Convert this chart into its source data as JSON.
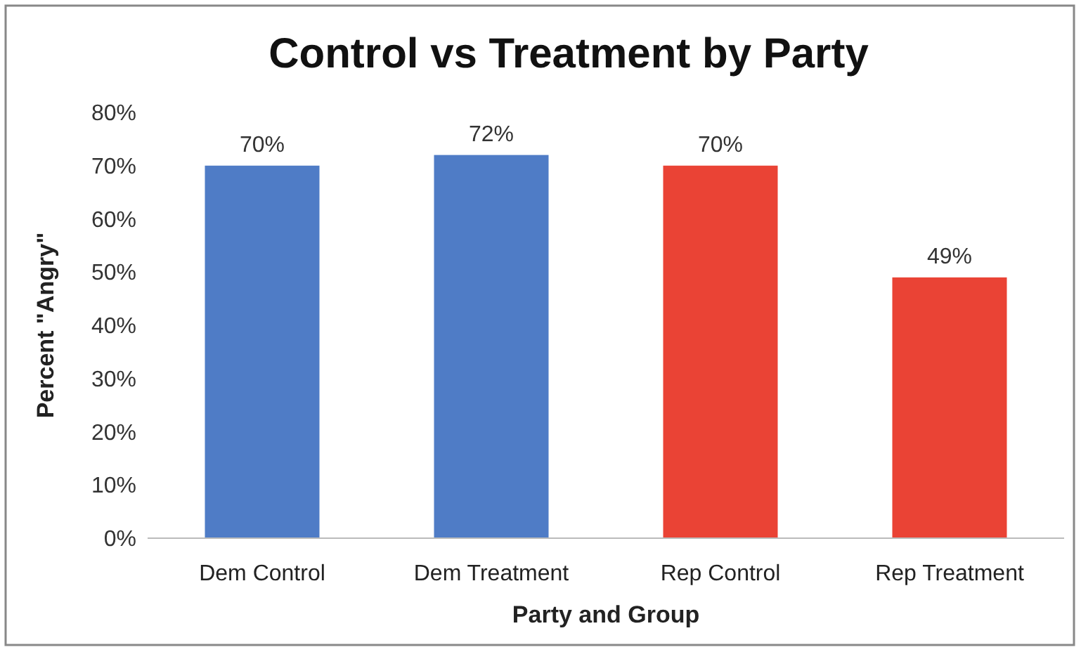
{
  "chart_data": {
    "type": "bar",
    "title": "Control vs Treatment by Party",
    "xlabel": "Party and Group",
    "ylabel": "Percent \"Angry\"",
    "categories": [
      "Dem Control",
      "Dem Treatment",
      "Rep Control",
      "Rep Treatment"
    ],
    "values": [
      70,
      72,
      70,
      49
    ],
    "colors": [
      "#4f7cc6",
      "#4f7cc6",
      "#ea4335",
      "#ea4335"
    ],
    "value_labels": [
      "70%",
      "72%",
      "70%",
      "49%"
    ],
    "ylim": [
      0,
      80
    ],
    "yticks": [
      {
        "value": 0,
        "label": "0%"
      },
      {
        "value": 10,
        "label": "10%"
      },
      {
        "value": 20,
        "label": "20%"
      },
      {
        "value": 30,
        "label": "30%"
      },
      {
        "value": 40,
        "label": "40%"
      },
      {
        "value": 50,
        "label": "50%"
      },
      {
        "value": 60,
        "label": "60%"
      },
      {
        "value": 70,
        "label": "70%"
      },
      {
        "value": 80,
        "label": "80%"
      }
    ],
    "grid": false
  }
}
